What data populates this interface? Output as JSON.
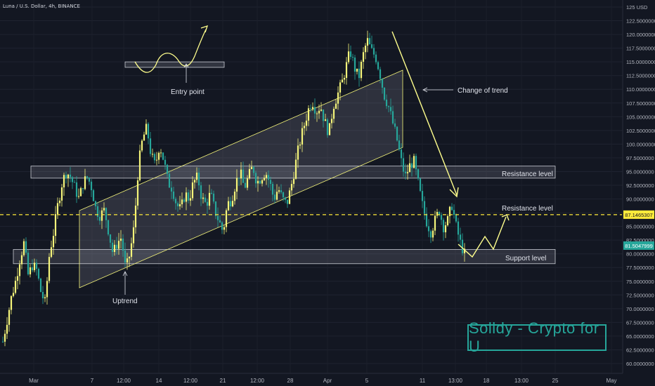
{
  "chart_title": "Luna / U.S. Dollar, 4h, BINANCE",
  "brand_text": "Solldy - Crypto for U",
  "colors": {
    "background": "#131722",
    "candle_up": "#f5f57a",
    "candle_down": "#26a69a",
    "annotation": "#ffff8d",
    "zone_fill": "rgba(210,214,224,0.16)",
    "dashed_line": "#ffeb3b",
    "badge_resistance": "#ffeb3b",
    "badge_price": "#26a69a"
  },
  "annotations": {
    "entry_point": "Entry point",
    "change_of_trend": "Change of trend",
    "resistance_upper": "Resistance level",
    "resistance_dashed": "Resistance level",
    "support": "Support level",
    "uptrend": "Uptrend"
  },
  "chart_data": {
    "type": "candlestick",
    "title": "Luna / U.S. Dollar, 4h, BINANCE",
    "xlabel": "",
    "ylabel": "",
    "ylim": [
      60,
      125
    ],
    "grid": true,
    "y_ticks": [
      "125 USD",
      "122.5000000",
      "120.0000000",
      "117.5000000",
      "115.0000000",
      "112.5000000",
      "110.0000000",
      "107.5000000",
      "105.0000000",
      "102.5000000",
      "100.0000000",
      "97.5000000",
      "95.0000000",
      "92.5000000",
      "90.0000000",
      "87.5000000",
      "85.0000000",
      "82.5000000",
      "80.0000000",
      "77.5000000",
      "75.0000000",
      "72.5000000",
      "70.0000000",
      "67.5000000",
      "65.0000000",
      "62.5000000",
      "60.0000000"
    ],
    "x_ticks": [
      "Mar",
      "7",
      "12:00",
      "14",
      "12:00",
      "21",
      "12:00",
      "28",
      "Apr",
      "5",
      "11",
      "13:00",
      "18",
      "13:00",
      "25",
      "May"
    ],
    "price_badges": [
      {
        "label": "87.1465307",
        "value": 87.1465307
      },
      {
        "label": "81.5047999",
        "value": 81.5047999
      }
    ],
    "levels": {
      "resistance_zone": [
        93.8,
        96.0
      ],
      "support_zone": [
        78.2,
        80.8
      ],
      "dashed_resistance": 87.1465307,
      "entry_zone": [
        114.0,
        115.0
      ]
    },
    "path_points": [
      [
        0,
        64
      ],
      [
        2,
        68
      ],
      [
        4,
        72
      ],
      [
        6,
        75
      ],
      [
        8,
        79
      ],
      [
        10,
        82
      ],
      [
        12,
        76
      ],
      [
        14,
        78
      ],
      [
        16,
        77
      ],
      [
        18,
        73
      ],
      [
        20,
        71
      ],
      [
        22,
        80
      ],
      [
        24,
        84
      ],
      [
        26,
        89
      ],
      [
        28,
        93
      ],
      [
        30,
        95
      ],
      [
        32,
        94
      ],
      [
        34,
        92
      ],
      [
        36,
        90
      ],
      [
        38,
        93
      ],
      [
        40,
        94
      ],
      [
        42,
        92
      ],
      [
        44,
        88
      ],
      [
        46,
        87
      ],
      [
        48,
        88
      ],
      [
        50,
        84
      ],
      [
        52,
        80
      ],
      [
        54,
        82
      ],
      [
        56,
        83
      ],
      [
        58,
        77
      ],
      [
        60,
        80
      ],
      [
        62,
        85
      ],
      [
        64,
        96
      ],
      [
        66,
        101
      ],
      [
        68,
        103
      ],
      [
        70,
        98
      ],
      [
        72,
        96
      ],
      [
        74,
        100
      ],
      [
        76,
        97
      ],
      [
        78,
        93
      ],
      [
        80,
        92
      ],
      [
        82,
        89
      ],
      [
        84,
        88
      ],
      [
        86,
        91
      ],
      [
        88,
        90
      ],
      [
        90,
        93
      ],
      [
        92,
        94
      ],
      [
        94,
        90
      ],
      [
        96,
        89
      ],
      [
        98,
        91
      ],
      [
        100,
        88
      ],
      [
        102,
        86
      ],
      [
        104,
        84
      ],
      [
        106,
        89
      ],
      [
        108,
        90
      ],
      [
        110,
        93
      ],
      [
        112,
        95
      ],
      [
        114,
        92
      ],
      [
        116,
        94
      ],
      [
        118,
        96
      ],
      [
        120,
        93
      ],
      [
        122,
        94
      ],
      [
        124,
        95
      ],
      [
        126,
        93
      ],
      [
        128,
        90
      ],
      [
        130,
        92
      ],
      [
        132,
        90
      ],
      [
        134,
        89
      ],
      [
        136,
        92
      ],
      [
        138,
        96
      ],
      [
        140,
        100
      ],
      [
        142,
        103
      ],
      [
        144,
        106
      ],
      [
        146,
        108
      ],
      [
        148,
        106
      ],
      [
        150,
        107
      ],
      [
        152,
        104
      ],
      [
        154,
        102
      ],
      [
        156,
        107
      ],
      [
        158,
        109
      ],
      [
        160,
        111
      ],
      [
        162,
        114
      ],
      [
        164,
        117
      ],
      [
        166,
        114
      ],
      [
        168,
        112
      ],
      [
        170,
        116
      ],
      [
        172,
        119
      ],
      [
        174,
        117
      ],
      [
        176,
        116
      ],
      [
        178,
        113
      ],
      [
        180,
        109
      ],
      [
        182,
        107
      ],
      [
        184,
        104
      ],
      [
        186,
        101
      ],
      [
        188,
        97
      ],
      [
        190,
        94
      ],
      [
        192,
        96
      ],
      [
        194,
        97
      ],
      [
        196,
        93
      ],
      [
        198,
        89
      ],
      [
        200,
        86
      ],
      [
        202,
        84
      ],
      [
        204,
        86
      ],
      [
        206,
        88
      ],
      [
        208,
        85
      ],
      [
        210,
        86
      ],
      [
        212,
        89
      ],
      [
        214,
        85
      ],
      [
        216,
        82
      ],
      [
        218,
        80
      ]
    ]
  }
}
